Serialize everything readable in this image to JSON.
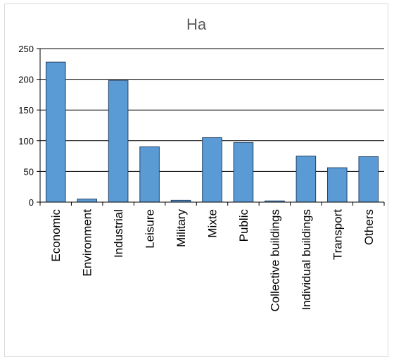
{
  "chart_data": {
    "type": "bar",
    "title": "Ha",
    "categories": [
      "Economic",
      "Environment",
      "Industrial",
      "Leisure",
      "Military",
      "Mixte",
      "Public",
      "Collective buildings",
      "Individual buildings",
      "Transport",
      "Others"
    ],
    "values": [
      228,
      5,
      198,
      90,
      3,
      105,
      97,
      2,
      75,
      56,
      74
    ],
    "ylim": [
      0,
      250
    ],
    "yticks": [
      0,
      50,
      100,
      150,
      200,
      250
    ],
    "grid": true,
    "legend": "none",
    "colors": {
      "bar_fill": "#5b9bd5",
      "bar_stroke": "#1f3f66",
      "grid": "#000000"
    }
  }
}
